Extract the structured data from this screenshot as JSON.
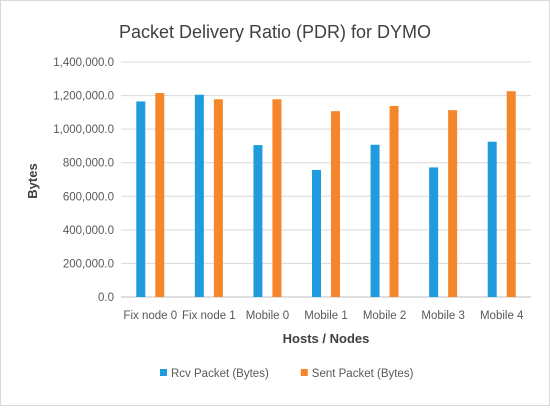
{
  "chart_data": {
    "type": "bar",
    "title": "Packet Delivery Ratio (PDR) for DYMO",
    "xlabel": "Hosts / Nodes",
    "ylabel": "Bytes",
    "ylim": [
      0,
      1400000
    ],
    "yticks": [
      0,
      200000,
      400000,
      600000,
      800000,
      1000000,
      1200000,
      1400000
    ],
    "ytick_labels": [
      "0.0",
      "200,000.0",
      "400,000.0",
      "600,000.0",
      "800,000.0",
      "1,000,000.0",
      "1,200,000.0",
      "1,400,000.0"
    ],
    "grid": true,
    "legend_position": "bottom",
    "categories": [
      "Fix node 0",
      "Fix node 1",
      "Mobile 0",
      "Mobile 1",
      "Mobile 2",
      "Mobile 3",
      "Mobile 4"
    ],
    "series": [
      {
        "name": "Rcv Packet (Bytes)",
        "color": "#1f9bde",
        "values": [
          1165000,
          1205000,
          905000,
          757000,
          907000,
          772000,
          925000
        ]
      },
      {
        "name": "Sent Packet (Bytes)",
        "color": "#f5862a",
        "values": [
          1215000,
          1178000,
          1178000,
          1107000,
          1138000,
          1113000,
          1226000
        ]
      }
    ]
  }
}
